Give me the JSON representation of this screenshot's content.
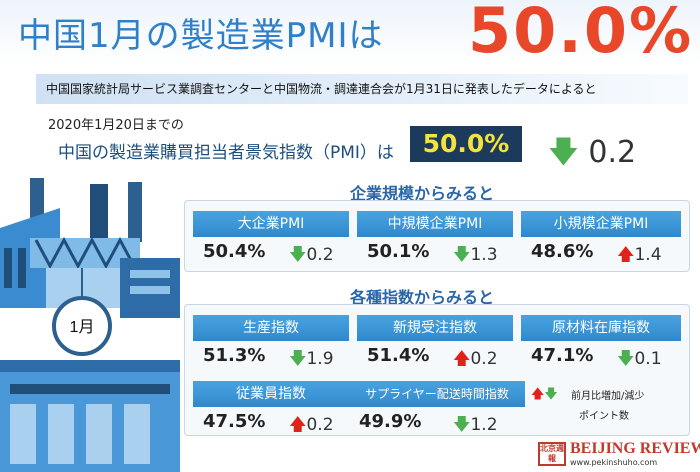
{
  "header": {
    "title": "中国1月の製造業PMIは",
    "title_value": "50.0%"
  },
  "source": "中国国家統計局サービス業調査センターと中国物流・調達連合会が1月31日に発表したデータによると",
  "overall": {
    "date": "2020年1月20日までの",
    "label": "中国の製造業購買担当者景気指数（PMI）は",
    "value": "50.0%",
    "change": "0.2",
    "direction": "down"
  },
  "factory_label": "1月",
  "size_section": {
    "title": "企業規模からみると",
    "cards": [
      {
        "label": "大企業PMI",
        "value": "50.4%",
        "change": "0.2",
        "direction": "down"
      },
      {
        "label": "中規模企業PMI",
        "value": "50.1%",
        "change": "1.3",
        "direction": "down"
      },
      {
        "label": "小規模企業PMI",
        "value": "48.6%",
        "change": "1.4",
        "direction": "up"
      }
    ]
  },
  "index_section": {
    "title": "各種指数からみると",
    "cards": [
      {
        "label": "生産指数",
        "value": "51.3%",
        "change": "1.9",
        "direction": "down"
      },
      {
        "label": "新規受注指数",
        "value": "51.4%",
        "change": "0.2",
        "direction": "up"
      },
      {
        "label": "原材料在庫指数",
        "value": "47.1%",
        "change": "0.1",
        "direction": "down"
      },
      {
        "label": "従業員指数",
        "value": "47.5%",
        "change": "0.2",
        "direction": "up"
      },
      {
        "label": "サプライヤー配送時間指数",
        "value": "49.9%",
        "change": "1.2",
        "direction": "down"
      }
    ]
  },
  "legend": {
    "line1": "前月比増加/減少",
    "line2": "ポイント数"
  },
  "logo": {
    "seal": "北京週報",
    "name": "BEIJING REVIEW",
    "url": "www.pekinshuho.com"
  },
  "colors": {
    "accent_blue": "#2f80c8",
    "headline_red": "#e8472a",
    "up": "#e2221a",
    "down": "#4caf50",
    "pmi_box": "#1b3a5c",
    "pmi_text": "#f4e33a"
  },
  "icons": {
    "up": "arrow-up-icon",
    "down": "arrow-down-icon"
  }
}
